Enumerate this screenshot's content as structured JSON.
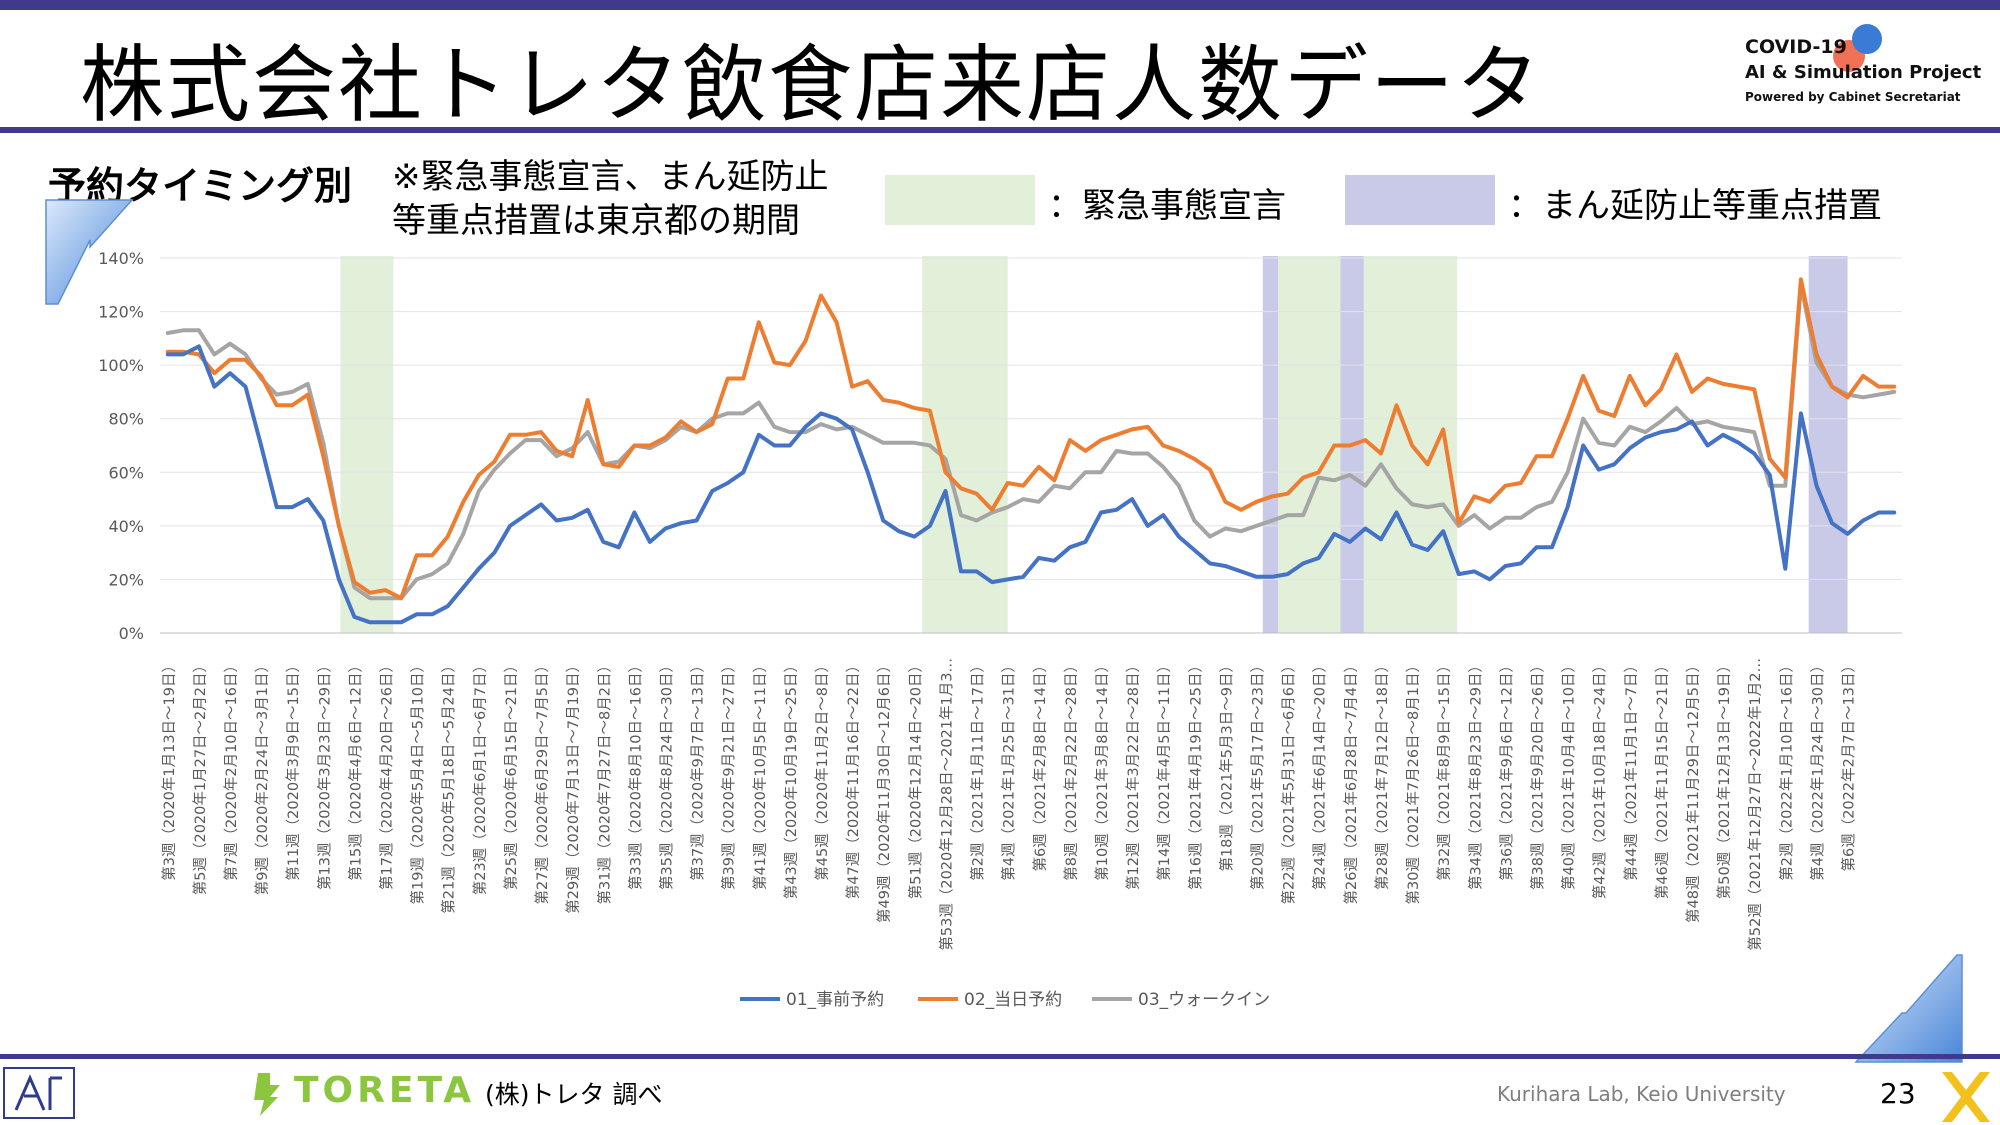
{
  "title": "株式会社トレタ飲食店来店人数データ",
  "logo": {
    "line1": "COVID-19",
    "line2": "AI & Simulation Project",
    "line3": "Powered by Cabinet Secretariat"
  },
  "section_label": "予約タイミング別",
  "note_lines": [
    "※緊急事態宣言、まん延防止",
    "等重点措置は東京都の期間"
  ],
  "period_legend": [
    {
      "label": "：緊急事態宣言",
      "color": "#e2efd9"
    },
    {
      "label": "：まん延防止等重点措置",
      "color": "#c9c9e8"
    }
  ],
  "footer": {
    "survey_note": "(株)トレタ 調べ",
    "brand": "TORETA",
    "credit": "Kurihara Lab, Keio University",
    "page_number": "23"
  },
  "chart_data": {
    "type": "line",
    "y_ticks": [
      "0%",
      "20%",
      "40%",
      "60%",
      "80%",
      "100%",
      "120%",
      "140%"
    ],
    "ylim": [
      0,
      140
    ],
    "x_count": 112,
    "x_tick_labels": [
      "第3週（2020年1月13日～19日）",
      "第5週（2020年1月27日～2月2日）",
      "第7週（2020年2月10日～16日）",
      "第9週（2020年2月24日～3月1日）",
      "第11週（2020年3月9日～15日）",
      "第13週（2020年3月23日～29日）",
      "第15週（2020年4月6日～12日）",
      "第17週（2020年4月20日～26日）",
      "第19週（2020年5月4日～5月10日）",
      "第21週（2020年5月18日～5月24日）",
      "第23週（2020年6月1日～6月7日）",
      "第25週（2020年6月15日～21日）",
      "第27週（2020年6月29日～7月5日）",
      "第29週（2020年7月13日～7月19日）",
      "第31週（2020年7月27日～8月2日）",
      "第33週（2020年8月10日～16日）",
      "第35週（2020年8月24日～30日）",
      "第37週（2020年9月7日～13日）",
      "第39週（2020年9月21日～27日）",
      "第41週（2020年10月5日～11日）",
      "第43週（2020年10月19日～25日）",
      "第45週（2020年11月2日～8日）",
      "第47週（2020年11月16日～22日）",
      "第49週（2020年11月30日～12月6日）",
      "第51週（2020年12月14日～20日）",
      "第53週（2020年12月28日～2021年1月3…",
      "第2週（2021年1月11日～17日）",
      "第4週（2021年1月25日～31日）",
      "第6週（2021年2月8日～14日）",
      "第8週（2021年2月22日～28日）",
      "第10週（2021年3月8日～14日）",
      "第12週（2021年3月22日～28日）",
      "第14週（2021年4月5日～11日）",
      "第16週（2021年4月19日～25日）",
      "第18週（2021年5月3日～9日）",
      "第20週（2021年5月17日～23日）",
      "第22週（2021年5月31日～6月6日）",
      "第24週（2021年6月14日～20日）",
      "第26週（2021年6月28日～7月4日）",
      "第28週（2021年7月12日～18日）",
      "第30週（2021年7月26日～8月1日）",
      "第32週（2021年8月9日～15日）",
      "第34週（2021年8月23日～29日）",
      "第36週（2021年9月6日～12日）",
      "第38週（2021年9月20日～26日）",
      "第40週（2021年10月4日～10日）",
      "第42週（2021年10月18日～24日）",
      "第44週（2021年11月1日～7日）",
      "第46週（2021年11月15日～21日）",
      "第48週（2021年11月29日～12月5日）",
      "第50週（2021年12月13日～19日）",
      "第52週（2021年12月27日～2022年1月2…",
      "第2週（2022年1月10日～16日）",
      "第4週（2022年1月24日～30日）",
      "第6週（2022年2月7日～13日）"
    ],
    "shaded_periods": [
      {
        "type": "emergency",
        "start": 11.6,
        "end": 15.0
      },
      {
        "type": "emergency",
        "start": 49.0,
        "end": 54.5
      },
      {
        "type": "priority",
        "start": 70.9,
        "end": 71.9
      },
      {
        "type": "emergency",
        "start": 71.9,
        "end": 75.9
      },
      {
        "type": "priority",
        "start": 75.9,
        "end": 77.4
      },
      {
        "type": "emergency",
        "start": 77.4,
        "end": 83.4
      },
      {
        "type": "priority",
        "start": 106.0,
        "end": 108.5
      }
    ],
    "series": [
      {
        "name": "01_事前予約",
        "color": "#4472c4",
        "values": [
          104,
          104,
          107,
          92,
          97,
          92,
          70,
          47,
          47,
          50,
          42,
          20,
          6,
          4,
          4,
          4,
          7,
          7,
          10,
          17,
          24,
          30,
          40,
          44,
          48,
          42,
          43,
          46,
          34,
          32,
          45,
          34,
          39,
          41,
          42,
          53,
          56,
          60,
          74,
          70,
          70,
          77,
          82,
          80,
          76,
          60,
          42,
          38,
          36,
          40,
          53,
          23,
          23,
          19,
          20,
          21,
          28,
          27,
          32,
          34,
          45,
          46,
          50,
          40,
          44,
          36,
          31,
          26,
          25,
          23,
          21,
          21,
          22,
          26,
          28,
          37,
          34,
          39,
          35,
          45,
          33,
          31,
          38,
          22,
          23,
          20,
          25,
          26,
          32,
          32,
          47,
          70,
          61,
          63,
          69,
          73,
          75,
          76,
          79,
          70,
          74,
          71,
          67,
          59,
          24,
          82,
          55,
          41,
          37,
          42,
          45,
          45
        ]
      },
      {
        "name": "02_当日予約",
        "color": "#ed7d31",
        "values": [
          105,
          105,
          104,
          97,
          102,
          102,
          96,
          85,
          85,
          89,
          66,
          40,
          19,
          15,
          16,
          13,
          29,
          29,
          36,
          49,
          59,
          64,
          74,
          74,
          75,
          68,
          66,
          87,
          63,
          62,
          70,
          70,
          73,
          79,
          75,
          78,
          95,
          95,
          116,
          101,
          100,
          109,
          126,
          116,
          92,
          94,
          87,
          86,
          84,
          83,
          60,
          54,
          52,
          46,
          56,
          55,
          62,
          57,
          72,
          68,
          72,
          74,
          76,
          77,
          70,
          68,
          65,
          61,
          49,
          46,
          49,
          51,
          52,
          58,
          60,
          70,
          70,
          72,
          67,
          85,
          70,
          63,
          76,
          41,
          51,
          49,
          55,
          56,
          66,
          66,
          80,
          96,
          83,
          81,
          96,
          85,
          91,
          104,
          90,
          95,
          93,
          92,
          91,
          65,
          58,
          132,
          104,
          92,
          88,
          96,
          92,
          92
        ]
      },
      {
        "name": "03_ウォークイン",
        "color": "#a5a5a5",
        "values": [
          112,
          113,
          113,
          104,
          108,
          104,
          95,
          89,
          90,
          93,
          71,
          40,
          17,
          13,
          13,
          13,
          20,
          22,
          26,
          37,
          53,
          61,
          67,
          72,
          72,
          66,
          69,
          75,
          63,
          64,
          70,
          69,
          72,
          77,
          75,
          80,
          82,
          82,
          86,
          77,
          75,
          75,
          78,
          76,
          77,
          74,
          71,
          71,
          71,
          70,
          65,
          44,
          42,
          45,
          47,
          50,
          49,
          55,
          54,
          60,
          60,
          68,
          67,
          67,
          62,
          55,
          42,
          36,
          39,
          38,
          40,
          42,
          44,
          44,
          58,
          57,
          59,
          55,
          63,
          54,
          48,
          47,
          48,
          40,
          44,
          39,
          43,
          43,
          47,
          49,
          60,
          80,
          71,
          70,
          77,
          75,
          79,
          84,
          78,
          79,
          77,
          76,
          75,
          55,
          55,
          130,
          101,
          92,
          89,
          88,
          89,
          90
        ]
      }
    ]
  }
}
